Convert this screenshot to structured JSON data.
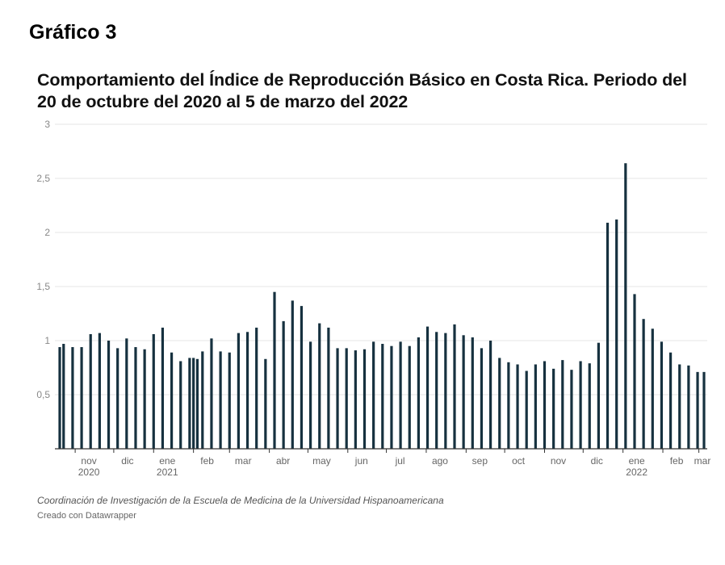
{
  "figure_label": "Gráfico 3",
  "source": "Coordinación de Investigación de la Escuela de Medicina de la Universidad Hispanoamericana",
  "credit": "Creado con Datawrapper",
  "colors": {
    "bar": "#16313f",
    "grid": "#e6e6e6",
    "axis": "#333333"
  },
  "chart_data": {
    "type": "bar",
    "title": "Comportamiento del Índice de Reproducción Básico en Costa Rica. Periodo del 20 de octubre del 2020 al 5 de marzo del 2022",
    "xlabel": "",
    "ylabel": "",
    "ylim": [
      0,
      3
    ],
    "y_ticks": [
      0.5,
      1,
      1.5,
      2,
      2.5,
      3
    ],
    "y_tick_labels": [
      "0,5",
      "1",
      "1,5",
      "2",
      "2,5",
      "3"
    ],
    "x_domain": [
      "2020-10-20",
      "2022-03-05"
    ],
    "x_ticks": [
      {
        "date": "2020-11-01",
        "label": "nov",
        "year": "2020"
      },
      {
        "date": "2020-12-01",
        "label": "dic",
        "year": ""
      },
      {
        "date": "2021-01-01",
        "label": "ene",
        "year": "2021"
      },
      {
        "date": "2021-02-01",
        "label": "feb",
        "year": ""
      },
      {
        "date": "2021-03-01",
        "label": "mar",
        "year": ""
      },
      {
        "date": "2021-04-01",
        "label": "abr",
        "year": ""
      },
      {
        "date": "2021-05-01",
        "label": "may",
        "year": ""
      },
      {
        "date": "2021-06-01",
        "label": "jun",
        "year": ""
      },
      {
        "date": "2021-07-01",
        "label": "jul",
        "year": ""
      },
      {
        "date": "2021-08-01",
        "label": "ago",
        "year": ""
      },
      {
        "date": "2021-09-01",
        "label": "sep",
        "year": ""
      },
      {
        "date": "2021-10-01",
        "label": "oct",
        "year": ""
      },
      {
        "date": "2021-11-01",
        "label": "nov",
        "year": ""
      },
      {
        "date": "2021-12-01",
        "label": "dic",
        "year": ""
      },
      {
        "date": "2022-01-01",
        "label": "ene",
        "year": "2022"
      },
      {
        "date": "2022-02-01",
        "label": "feb",
        "year": ""
      },
      {
        "date": "2022-03-01",
        "label": "mar",
        "year": ""
      }
    ],
    "x": [
      "2020-10-20",
      "2020-10-23",
      "2020-10-30",
      "2020-11-06",
      "2020-11-13",
      "2020-11-20",
      "2020-11-27",
      "2020-12-04",
      "2020-12-11",
      "2020-12-18",
      "2020-12-25",
      "2021-01-01",
      "2021-01-08",
      "2021-01-15",
      "2021-01-22",
      "2021-01-29",
      "2021-02-01",
      "2021-02-04",
      "2021-02-08",
      "2021-02-15",
      "2021-02-22",
      "2021-03-01",
      "2021-03-08",
      "2021-03-15",
      "2021-03-22",
      "2021-03-29",
      "2021-04-05",
      "2021-04-12",
      "2021-04-19",
      "2021-04-26",
      "2021-05-03",
      "2021-05-10",
      "2021-05-17",
      "2021-05-24",
      "2021-05-31",
      "2021-06-07",
      "2021-06-14",
      "2021-06-21",
      "2021-06-28",
      "2021-07-05",
      "2021-07-12",
      "2021-07-19",
      "2021-07-26",
      "2021-08-02",
      "2021-08-09",
      "2021-08-16",
      "2021-08-23",
      "2021-08-30",
      "2021-09-06",
      "2021-09-13",
      "2021-09-20",
      "2021-09-27",
      "2021-10-04",
      "2021-10-11",
      "2021-10-18",
      "2021-10-25",
      "2021-11-01",
      "2021-11-08",
      "2021-11-15",
      "2021-11-22",
      "2021-11-29",
      "2021-12-06",
      "2021-12-13",
      "2021-12-20",
      "2021-12-27",
      "2022-01-03",
      "2022-01-10",
      "2022-01-17",
      "2022-01-24",
      "2022-01-31",
      "2022-02-07",
      "2022-02-14",
      "2022-02-21",
      "2022-02-28",
      "2022-03-05"
    ],
    "values": [
      0.94,
      0.97,
      0.94,
      0.94,
      1.06,
      1.07,
      1.0,
      0.93,
      1.02,
      0.94,
      0.92,
      1.06,
      1.12,
      0.89,
      0.81,
      0.84,
      0.84,
      0.83,
      0.9,
      1.02,
      0.9,
      0.89,
      1.07,
      1.08,
      1.12,
      0.83,
      1.45,
      1.18,
      1.37,
      1.32,
      0.99,
      1.16,
      1.12,
      0.93,
      0.93,
      0.91,
      0.92,
      0.99,
      0.97,
      0.95,
      0.99,
      0.95,
      1.03,
      1.13,
      1.08,
      1.07,
      1.15,
      1.05,
      1.03,
      0.93,
      1.0,
      0.84,
      0.8,
      0.78,
      0.72,
      0.78,
      0.81,
      0.74,
      0.82,
      0.73,
      0.81,
      0.79,
      0.98,
      2.09,
      2.12,
      2.64,
      1.43,
      1.2,
      1.11,
      0.99,
      0.89,
      0.78,
      0.77,
      0.71,
      0.71
    ]
  }
}
